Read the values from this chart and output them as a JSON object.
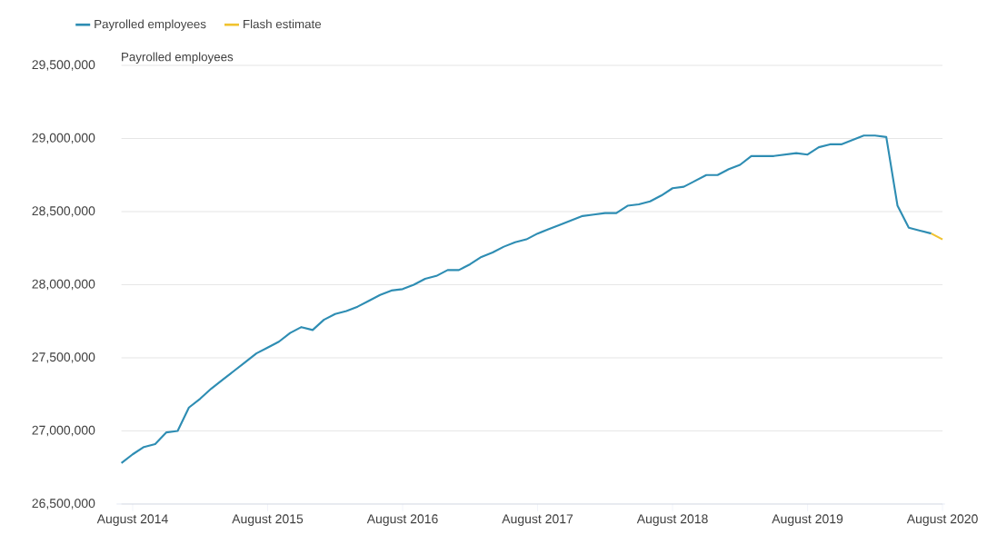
{
  "chart_data": {
    "type": "line",
    "ylabel": "Payrolled employees",
    "x": [
      "2014-07",
      "2014-08",
      "2014-09",
      "2014-10",
      "2014-11",
      "2014-12",
      "2015-01",
      "2015-02",
      "2015-03",
      "2015-04",
      "2015-05",
      "2015-06",
      "2015-07",
      "2015-08",
      "2015-09",
      "2015-10",
      "2015-11",
      "2015-12",
      "2016-01",
      "2016-02",
      "2016-03",
      "2016-04",
      "2016-05",
      "2016-06",
      "2016-07",
      "2016-08",
      "2016-09",
      "2016-10",
      "2016-11",
      "2016-12",
      "2017-01",
      "2017-02",
      "2017-03",
      "2017-04",
      "2017-05",
      "2017-06",
      "2017-07",
      "2017-08",
      "2017-09",
      "2017-10",
      "2017-11",
      "2017-12",
      "2018-01",
      "2018-02",
      "2018-03",
      "2018-04",
      "2018-05",
      "2018-06",
      "2018-07",
      "2018-08",
      "2018-09",
      "2018-10",
      "2018-11",
      "2018-12",
      "2019-01",
      "2019-02",
      "2019-03",
      "2019-04",
      "2019-05",
      "2019-06",
      "2019-07",
      "2019-08",
      "2019-09",
      "2019-10",
      "2019-11",
      "2019-12",
      "2020-01",
      "2020-02",
      "2020-03",
      "2020-04",
      "2020-05",
      "2020-06",
      "2020-07"
    ],
    "series": [
      {
        "name": "Payrolled employees",
        "color": "#2e8db3",
        "values": [
          26780000,
          26840000,
          26890000,
          26910000,
          26990000,
          27000000,
          27160000,
          27220000,
          27290000,
          27350000,
          27410000,
          27470000,
          27530000,
          27570000,
          27610000,
          27670000,
          27710000,
          27690000,
          27760000,
          27800000,
          27820000,
          27850000,
          27890000,
          27930000,
          27960000,
          27970000,
          28000000,
          28040000,
          28060000,
          28100000,
          28100000,
          28140000,
          28190000,
          28220000,
          28260000,
          28290000,
          28310000,
          28350000,
          28380000,
          28410000,
          28440000,
          28470000,
          28480000,
          28490000,
          28490000,
          28540000,
          28550000,
          28570000,
          28610000,
          28660000,
          28670000,
          28710000,
          28750000,
          28750000,
          28790000,
          28820000,
          28880000,
          28880000,
          28880000,
          28890000,
          28900000,
          28890000,
          28940000,
          28960000,
          28960000,
          28990000,
          29020000,
          29020000,
          29010000,
          28540000,
          28390000,
          28370000,
          28350000
        ]
      },
      {
        "name": "Flash estimate",
        "color": "#f0c330",
        "x": [
          "2020-07",
          "2020-08"
        ],
        "values": [
          28350000,
          28310000
        ]
      }
    ],
    "xlim": [
      "2014-07",
      "2020-08"
    ],
    "xticks": [
      {
        "value": "2014-08",
        "label": "August 2014"
      },
      {
        "value": "2015-08",
        "label": "August 2015"
      },
      {
        "value": "2016-08",
        "label": "August 2016"
      },
      {
        "value": "2017-08",
        "label": "August 2017"
      },
      {
        "value": "2018-08",
        "label": "August 2018"
      },
      {
        "value": "2019-08",
        "label": "August 2019"
      },
      {
        "value": "2020-08",
        "label": "August 2020"
      }
    ],
    "ylim": [
      26500000,
      29500000
    ],
    "yticks": [
      {
        "value": 26500000,
        "label": "26,500,000"
      },
      {
        "value": 27000000,
        "label": "27,000,000"
      },
      {
        "value": 27500000,
        "label": "27,500,000"
      },
      {
        "value": 28000000,
        "label": "28,000,000"
      },
      {
        "value": 28500000,
        "label": "28,500,000"
      },
      {
        "value": 29000000,
        "label": "29,000,000"
      },
      {
        "value": 29500000,
        "label": "29,500,000"
      }
    ],
    "grid": "y",
    "legend": "top left",
    "marker": "none",
    "line_style": "solid"
  }
}
